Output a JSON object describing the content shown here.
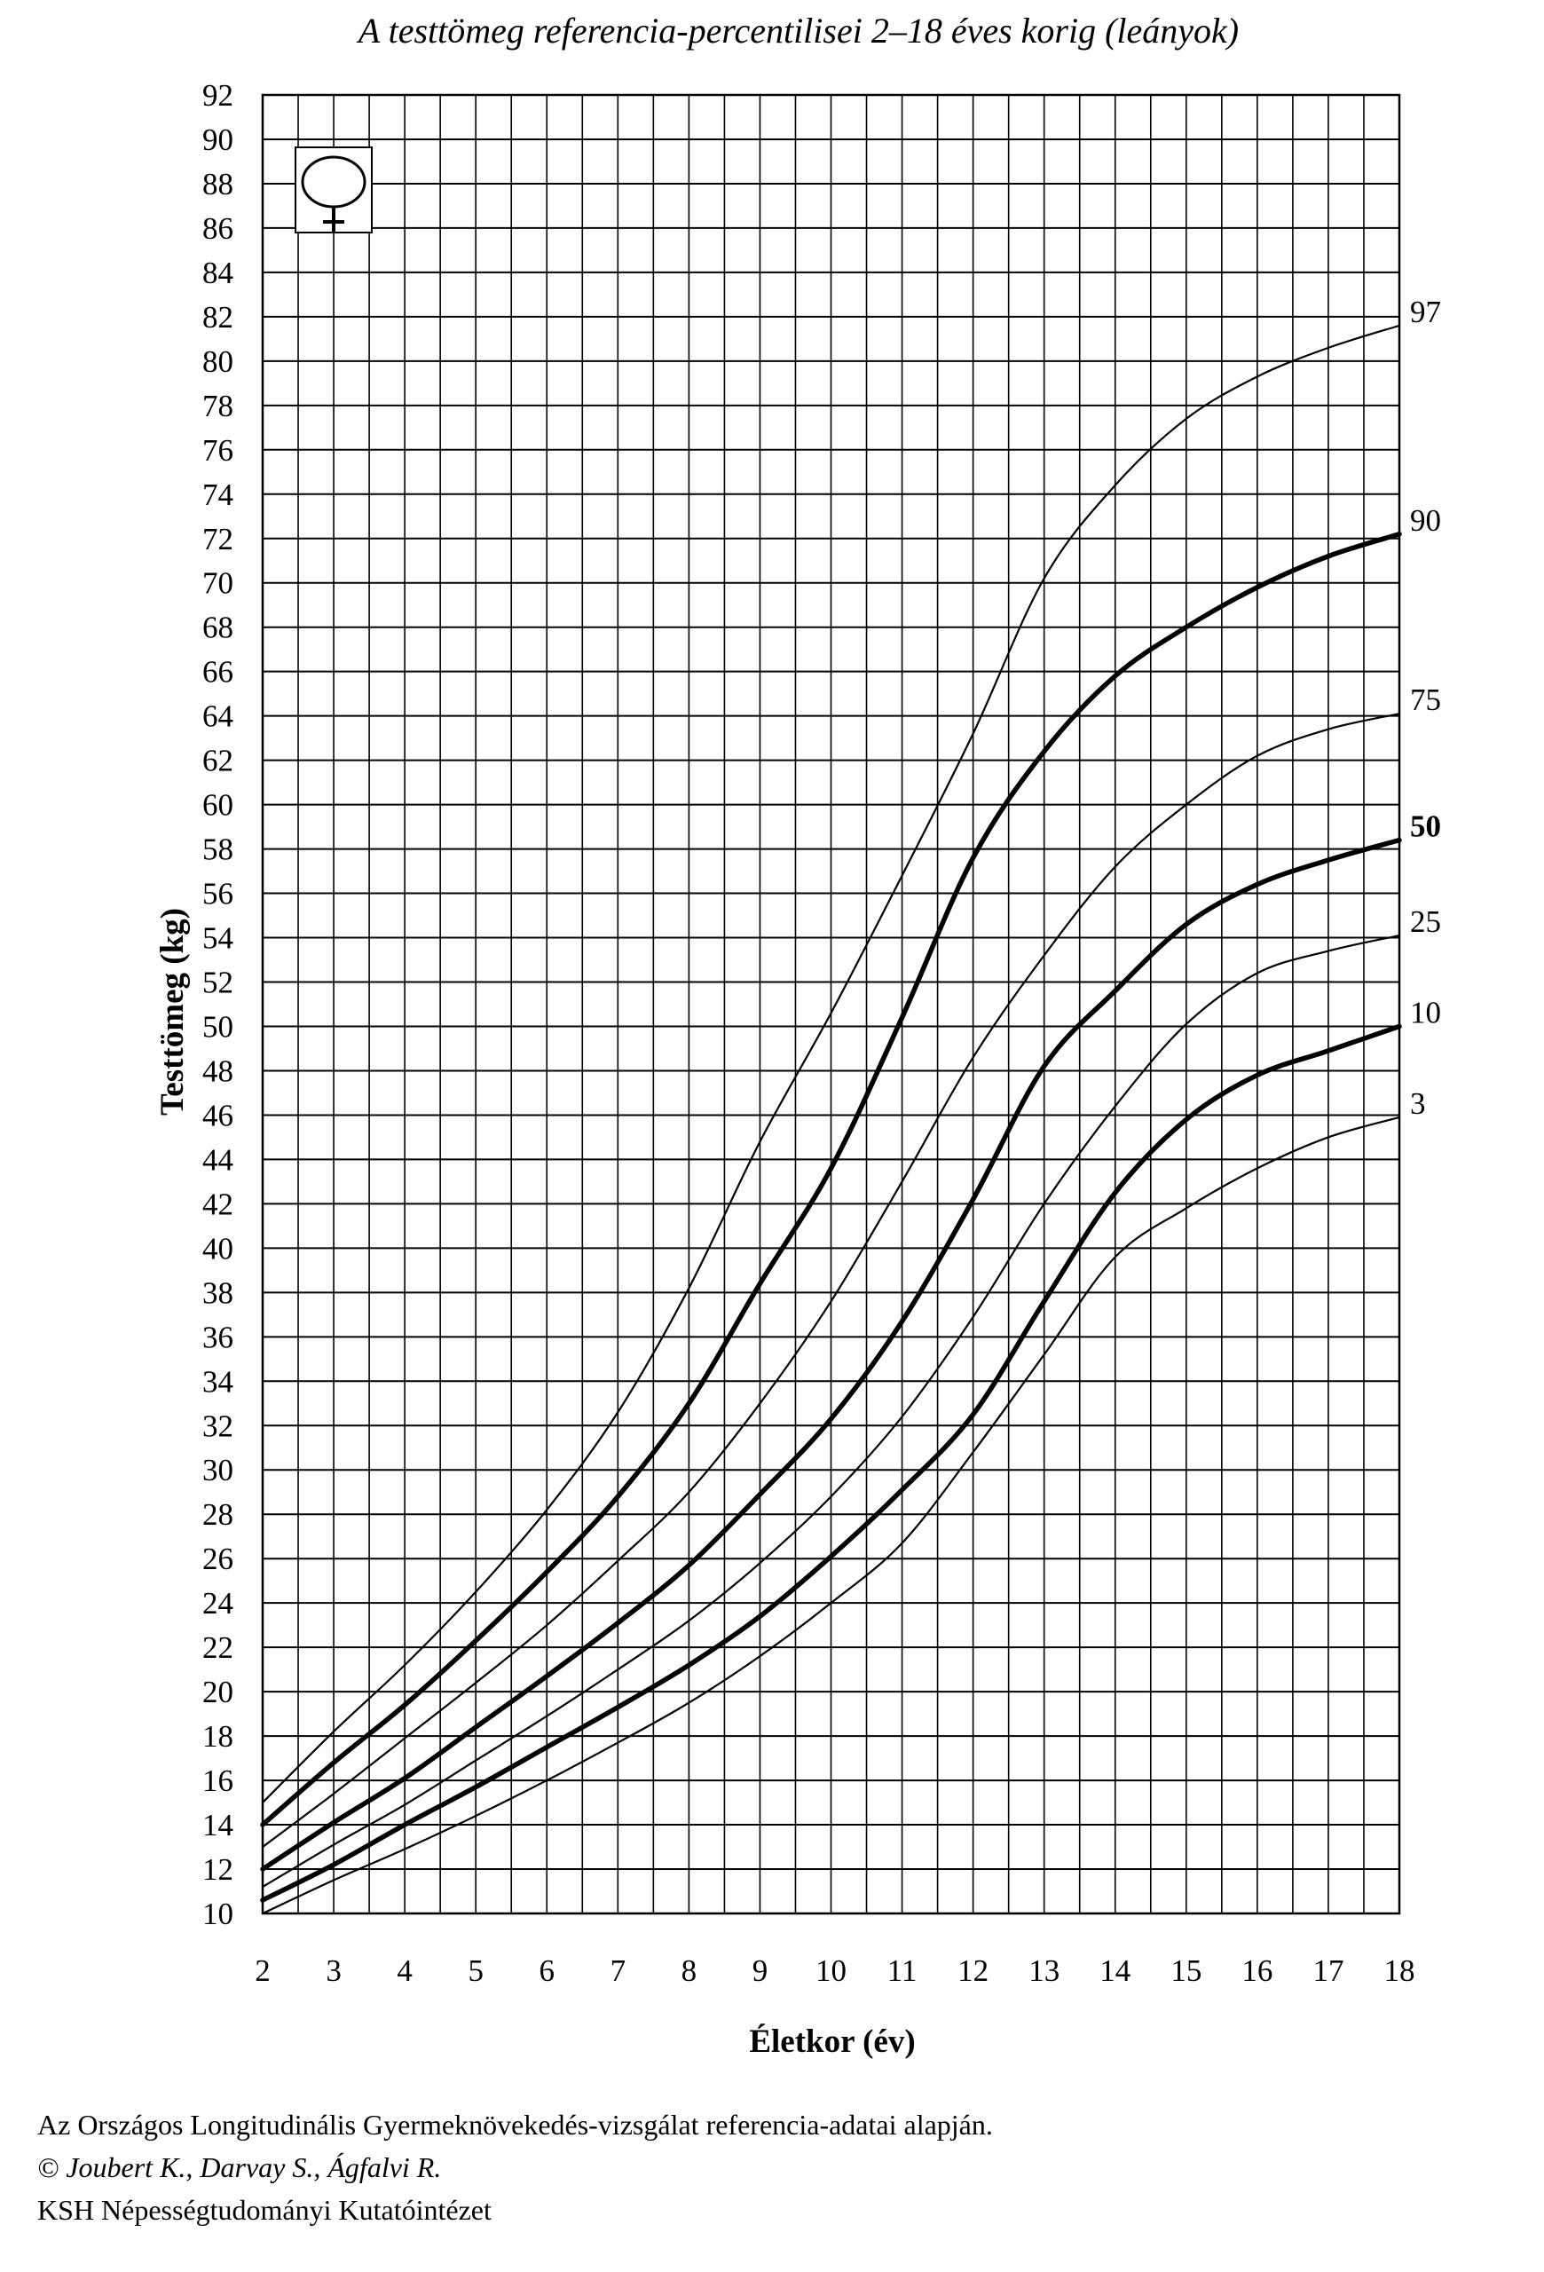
{
  "chart_data": {
    "type": "line",
    "title": "A testtömeg referencia-percentilisei 2–18 éves korig (leányok)",
    "xlabel": "Életkor (év)",
    "ylabel": "Testtömeg (kg)",
    "xlim": [
      2,
      18
    ],
    "ylim": [
      10,
      92
    ],
    "x_ticks": [
      2,
      3,
      4,
      5,
      6,
      7,
      8,
      9,
      10,
      11,
      12,
      13,
      14,
      15,
      16,
      17,
      18
    ],
    "y_ticks": [
      10,
      12,
      14,
      16,
      18,
      20,
      22,
      24,
      26,
      28,
      30,
      32,
      34,
      36,
      38,
      40,
      42,
      44,
      46,
      48,
      50,
      52,
      54,
      56,
      58,
      60,
      62,
      64,
      66,
      68,
      70,
      72,
      74,
      76,
      78,
      80,
      82,
      84,
      86,
      88,
      90,
      92
    ],
    "grid": true,
    "legend": "none",
    "x": [
      2,
      3,
      4,
      5,
      6,
      7,
      8,
      9,
      10,
      11,
      12,
      13,
      14,
      15,
      16,
      17,
      18
    ],
    "series": [
      {
        "name": "97",
        "bold": false,
        "values": [
          15.0,
          18.2,
          21.2,
          24.5,
          28.2,
          32.6,
          38.2,
          44.8,
          50.6,
          56.8,
          63.2,
          70.2,
          74.4,
          77.4,
          79.3,
          80.6,
          81.6
        ]
      },
      {
        "name": "90",
        "bold": true,
        "values": [
          14.0,
          16.8,
          19.4,
          22.3,
          25.4,
          28.8,
          33.0,
          38.4,
          43.6,
          50.4,
          57.6,
          62.4,
          65.8,
          68.0,
          69.8,
          71.2,
          72.2
        ]
      },
      {
        "name": "75",
        "bold": false,
        "values": [
          13.0,
          15.4,
          17.9,
          20.4,
          23.0,
          25.9,
          29.0,
          33.0,
          37.6,
          43.0,
          48.6,
          53.2,
          57.2,
          60.0,
          62.2,
          63.4,
          64.1
        ]
      },
      {
        "name": "50",
        "bold": true,
        "values": [
          12.0,
          14.1,
          16.1,
          18.4,
          20.7,
          23.1,
          25.7,
          28.9,
          32.3,
          36.7,
          42.2,
          48.2,
          51.6,
          54.6,
          56.4,
          57.5,
          58.4
        ]
      },
      {
        "name": "25",
        "bold": false,
        "values": [
          11.2,
          13.1,
          14.9,
          16.9,
          18.9,
          21.0,
          23.2,
          25.8,
          28.8,
          32.4,
          36.9,
          42.0,
          46.4,
          50.1,
          52.4,
          53.4,
          54.1
        ]
      },
      {
        "name": "10",
        "bold": true,
        "values": [
          10.6,
          12.2,
          14.0,
          15.7,
          17.5,
          19.3,
          21.2,
          23.4,
          26.1,
          29.1,
          32.5,
          37.6,
          42.5,
          45.8,
          47.8,
          48.9,
          50.0
        ]
      },
      {
        "name": "3",
        "bold": false,
        "values": [
          10.0,
          11.5,
          12.9,
          14.4,
          16.0,
          17.7,
          19.5,
          21.6,
          24.0,
          26.7,
          30.8,
          35.2,
          39.6,
          41.8,
          43.6,
          45.0,
          45.9
        ]
      }
    ],
    "icon": "female-symbol-icon"
  },
  "footer": {
    "line1": "Az Országos Longitudinális Gyermeknövekedés-vizsgálat referencia-adatai alapján.",
    "line2": "© Joubert K., Darvay S., Ágfalvi R.",
    "line3": "KSH Népességtudományi Kutatóintézet"
  }
}
